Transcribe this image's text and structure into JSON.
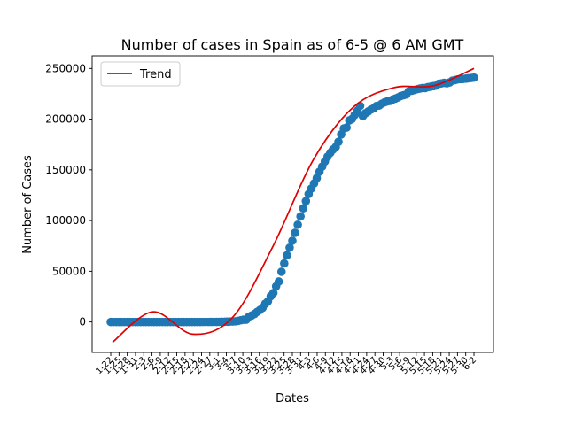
{
  "chart_data": {
    "type": "scatter",
    "title": "Number of cases in Spain as of 6-5 @ 6 AM GMT",
    "xlabel": "Dates",
    "ylabel": "Number of Cases",
    "ylim": [
      -30000,
      262500
    ],
    "grid": false,
    "legend_placement": "top-left",
    "y_ticks": [
      0,
      50000,
      100000,
      150000,
      200000,
      250000
    ],
    "y_tick_labels": [
      "0",
      "50000",
      "100000",
      "150000",
      "200000",
      "250000"
    ],
    "x_tick_labels": [
      "1-22",
      "1-25",
      "1-28",
      "1-31",
      "2-3",
      "2-6",
      "2-9",
      "2-12",
      "2-15",
      "2-18",
      "2-21",
      "2-24",
      "2-27",
      "3-1",
      "3-4",
      "3-7",
      "3-10",
      "3-13",
      "3-16",
      "3-19",
      "3-22",
      "3-25",
      "3-28",
      "3-31",
      "4-3",
      "4-6",
      "4-9",
      "4-12",
      "4-15",
      "4-18",
      "4-21",
      "4-24",
      "4-27",
      "4-30",
      "5-3",
      "5-6",
      "5-9",
      "5-12",
      "5-15",
      "5-18",
      "5-21",
      "5-24",
      "5-27",
      "5-30",
      "6-2"
    ],
    "series": [
      {
        "type": "scatter",
        "color": "#1f77b4",
        "x": [
          "1-22",
          "1-23",
          "1-24",
          "1-25",
          "1-26",
          "1-27",
          "1-28",
          "1-29",
          "1-30",
          "1-31",
          "2-1",
          "2-2",
          "2-3",
          "2-4",
          "2-5",
          "2-6",
          "2-7",
          "2-8",
          "2-9",
          "2-10",
          "2-11",
          "2-12",
          "2-13",
          "2-14",
          "2-15",
          "2-16",
          "2-17",
          "2-18",
          "2-19",
          "2-20",
          "2-21",
          "2-22",
          "2-23",
          "2-24",
          "2-25",
          "2-26",
          "2-27",
          "2-28",
          "2-29",
          "3-1",
          "3-2",
          "3-3",
          "3-4",
          "3-5",
          "3-6",
          "3-7",
          "3-8",
          "3-9",
          "3-10",
          "3-11",
          "3-12",
          "3-13",
          "3-14",
          "3-15",
          "3-16",
          "3-17",
          "3-18",
          "3-19",
          "3-20",
          "3-21",
          "3-22",
          "3-23",
          "3-24",
          "3-25",
          "3-26",
          "3-27",
          "3-28",
          "3-29",
          "3-30",
          "3-31",
          "4-1",
          "4-2",
          "4-3",
          "4-4",
          "4-5",
          "4-6",
          "4-7",
          "4-8",
          "4-9",
          "4-10",
          "4-11",
          "4-12",
          "4-13",
          "4-14",
          "4-15",
          "4-16",
          "4-17",
          "4-18",
          "4-19",
          "4-20",
          "4-21",
          "4-22",
          "4-23",
          "4-24",
          "4-25",
          "4-26",
          "4-27",
          "4-28",
          "4-29",
          "4-30",
          "5-1",
          "5-2",
          "5-3",
          "5-4",
          "5-5",
          "5-6",
          "5-7",
          "5-8",
          "5-9",
          "5-10",
          "5-11",
          "5-12",
          "5-13",
          "5-14",
          "5-15",
          "5-16",
          "5-17",
          "5-18",
          "5-19",
          "5-20",
          "5-21",
          "5-22",
          "5-23",
          "5-24",
          "5-25",
          "5-26",
          "5-27",
          "5-28",
          "5-29",
          "5-30",
          "5-31",
          "6-1",
          "6-2",
          "6-3",
          "6-4"
        ],
        "values": [
          0,
          0,
          0,
          0,
          0,
          0,
          0,
          0,
          0,
          0,
          1,
          1,
          1,
          1,
          1,
          1,
          1,
          1,
          2,
          2,
          2,
          2,
          2,
          2,
          2,
          2,
          2,
          2,
          2,
          2,
          2,
          2,
          2,
          2,
          6,
          13,
          15,
          32,
          45,
          84,
          120,
          165,
          222,
          259,
          400,
          500,
          673,
          1073,
          1695,
          2277,
          2277,
          5232,
          6391,
          7798,
          9942,
          11748,
          13910,
          17963,
          20410,
          25374,
          28603,
          35136,
          39885,
          49515,
          57786,
          65719,
          73235,
          80110,
          87956,
          95923,
          104118,
          112065,
          119199,
          126168,
          131646,
          136675,
          141942,
          148220,
          153222,
          158273,
          163027,
          166831,
          170099,
          172541,
          177644,
          184948,
          190839,
          191726,
          198674,
          200210,
          204178,
          208389,
          213024,
          202990,
          205905,
          207634,
          209465,
          210773,
          212917,
          213435,
          215216,
          216582,
          217466,
          218011,
          219329,
          220325,
          221447,
          222857,
          223578,
          224350,
          227436,
          228030,
          228691,
          229540,
          230183,
          230698,
          230698,
          231606,
          232037,
          232555,
          233037,
          234824,
          235290,
          235772,
          235400,
          236259,
          237906,
          238564,
          239228,
          239479,
          239638,
          239932,
          240326,
          240660,
          240978
        ]
      },
      {
        "name": "Trend",
        "type": "line",
        "color": "#e00000",
        "values": [
          -20000,
          10000,
          -12000,
          5000,
          75000,
          160000,
          212000,
          231000,
          233000,
          250000
        ]
      }
    ]
  }
}
